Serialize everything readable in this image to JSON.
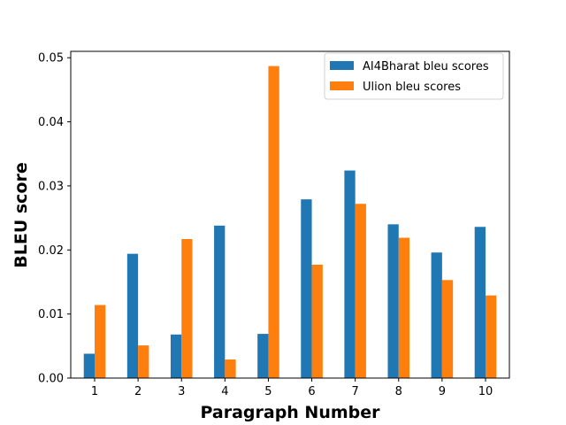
{
  "chart_data": {
    "type": "bar",
    "title": "",
    "xlabel": "Paragraph Number",
    "ylabel": "BLEU score",
    "categories": [
      "1",
      "2",
      "3",
      "4",
      "5",
      "6",
      "7",
      "8",
      "9",
      "10"
    ],
    "ylim": [
      0,
      0.051
    ],
    "yticks": [
      "0.00",
      "0.01",
      "0.02",
      "0.03",
      "0.04",
      "0.05"
    ],
    "ytick_values": [
      0,
      0.01,
      0.02,
      0.03,
      0.04,
      0.05
    ],
    "legend_position": "top-right",
    "grid": false,
    "series": [
      {
        "name": "AI4Bharat bleu scores",
        "color": "#1f77b4",
        "values": [
          0.0038,
          0.0194,
          0.0068,
          0.0238,
          0.0069,
          0.0279,
          0.0324,
          0.024,
          0.0196,
          0.0236
        ]
      },
      {
        "name": "Ulion bleu scores",
        "color": "#ff7f0e",
        "values": [
          0.0114,
          0.0051,
          0.0217,
          0.0029,
          0.0487,
          0.0177,
          0.0272,
          0.0219,
          0.0153,
          0.0129
        ]
      }
    ]
  }
}
